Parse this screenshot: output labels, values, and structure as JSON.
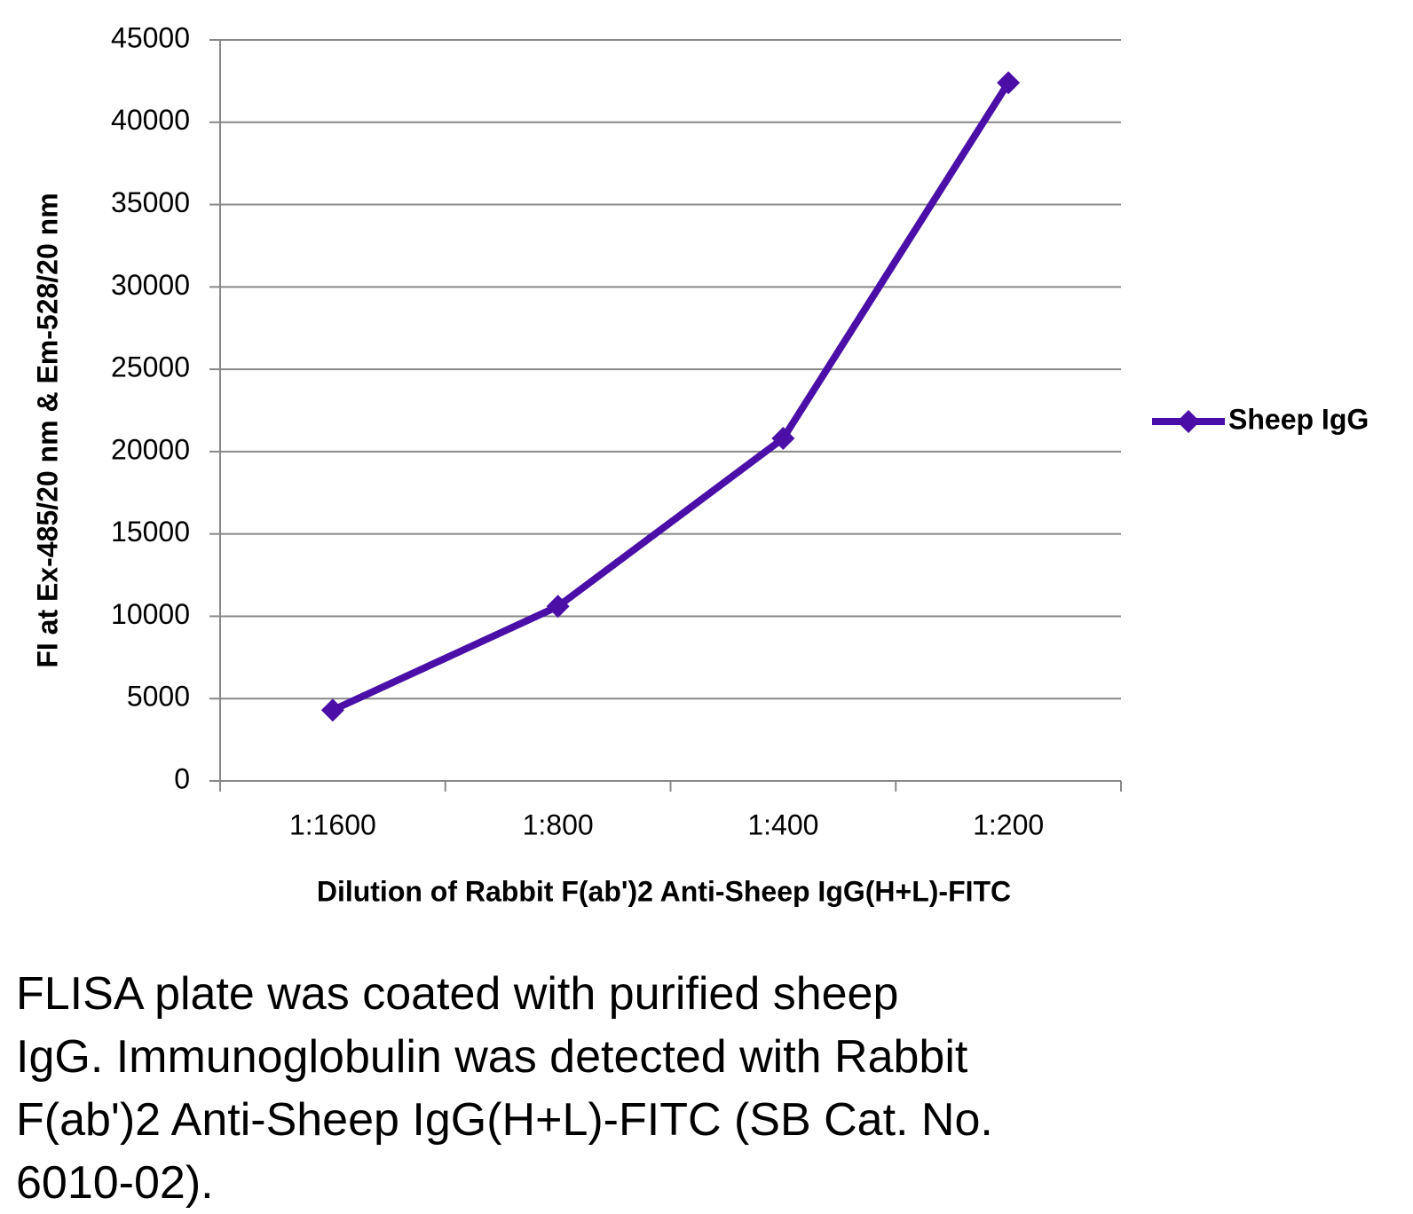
{
  "chart_data": {
    "type": "line",
    "categories": [
      "1:1600",
      "1:800",
      "1:400",
      "1:200"
    ],
    "series": [
      {
        "name": "Sheep IgG",
        "color": "#4b0fa8",
        "values": [
          4300,
          10600,
          20800,
          42400
        ]
      }
    ],
    "ylim": [
      0,
      45000
    ],
    "yticks": [
      0,
      5000,
      10000,
      15000,
      20000,
      25000,
      30000,
      35000,
      40000,
      45000
    ],
    "grid": true,
    "legend": "right",
    "x_label": "Dilution of Rabbit F(ab')2 Anti-Sheep IgG(H+L)-FITC",
    "y_label": "FI at Ex-485/20 nm & Em-528/20 nm"
  },
  "caption": [
    "FLISA plate was coated with purified sheep",
    "IgG.  Immunoglobulin was detected with Rabbit",
    "F(ab')2 Anti-Sheep IgG(H+L)-FITC (SB Cat. No.",
    "6010-02)."
  ]
}
